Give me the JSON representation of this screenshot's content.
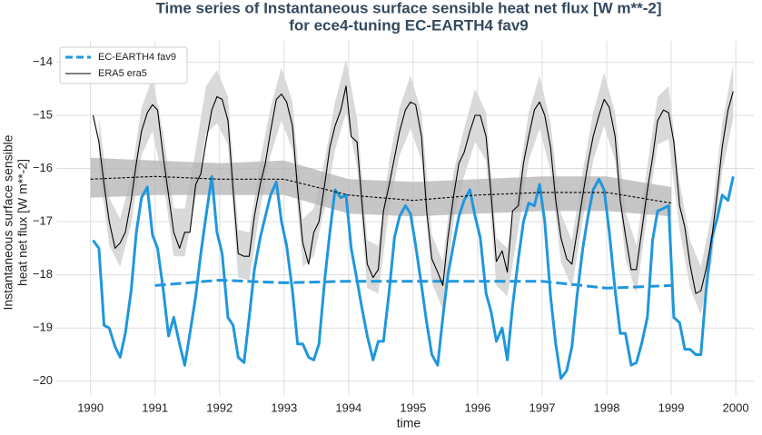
{
  "chart_data": {
    "type": "line",
    "title": "Time series of Instantaneous surface sensible heat net flux [W m**-2]",
    "subtitle": "for ece4-tuning EC-EARTH4 fav9",
    "xlabel": "time",
    "ylabel": [
      "Instantaneous surface sensible",
      "heat net flux [W m**-2]"
    ],
    "xlim": [
      1989.47,
      2000.28
    ],
    "ylim": [
      -20.26,
      -13.6
    ],
    "xticks": [
      1990,
      1991,
      1992,
      1993,
      1994,
      1995,
      1996,
      1997,
      1998,
      1999,
      2000
    ],
    "yticks": [
      {
        "value": -14,
        "label": "−14"
      },
      {
        "value": -15,
        "label": "−15"
      },
      {
        "value": -16,
        "label": "−16"
      },
      {
        "value": -17,
        "label": "−17"
      },
      {
        "value": -18,
        "label": "−18"
      },
      {
        "value": -19,
        "label": "−19"
      },
      {
        "value": -20,
        "label": "−20"
      }
    ],
    "grid": true,
    "legend": "upper left",
    "x": [
      1990.04,
      1990.13,
      1990.21,
      1990.29,
      1990.38,
      1990.46,
      1990.54,
      1990.63,
      1990.71,
      1990.79,
      1990.88,
      1990.96,
      1991.04,
      1991.13,
      1991.21,
      1991.29,
      1991.38,
      1991.46,
      1991.54,
      1991.63,
      1991.71,
      1991.79,
      1991.88,
      1991.96,
      1992.04,
      1992.13,
      1992.21,
      1992.29,
      1992.38,
      1992.46,
      1992.54,
      1992.63,
      1992.71,
      1992.79,
      1992.88,
      1992.96,
      1993.04,
      1993.13,
      1993.21,
      1993.29,
      1993.38,
      1993.46,
      1993.54,
      1993.63,
      1993.71,
      1993.79,
      1993.88,
      1993.96,
      1994.04,
      1994.13,
      1994.21,
      1994.29,
      1994.38,
      1994.46,
      1994.54,
      1994.63,
      1994.71,
      1994.79,
      1994.88,
      1994.96,
      1995.04,
      1995.13,
      1995.21,
      1995.29,
      1995.38,
      1995.46,
      1995.54,
      1995.63,
      1995.71,
      1995.79,
      1995.88,
      1995.96,
      1996.04,
      1996.13,
      1996.21,
      1996.29,
      1996.38,
      1996.46,
      1996.54,
      1996.63,
      1996.71,
      1996.79,
      1996.88,
      1996.96,
      1997.04,
      1997.13,
      1997.21,
      1997.29,
      1997.38,
      1997.46,
      1997.54,
      1997.63,
      1997.71,
      1997.79,
      1997.88,
      1997.96,
      1998.04,
      1998.13,
      1998.21,
      1998.29,
      1998.38,
      1998.46,
      1998.54,
      1998.63,
      1998.71,
      1998.79,
      1998.88,
      1998.96,
      1999.04,
      1999.13,
      1999.21,
      1999.29,
      1999.38,
      1999.46,
      1999.54,
      1999.63,
      1999.71,
      1999.79,
      1999.88,
      1999.96
    ],
    "series": [
      {
        "name": "EC-EARTH4 fav9",
        "color": "#1f97dc",
        "legend_dash": true,
        "values": [
          -17.35,
          -17.5,
          -18.95,
          -19.0,
          -19.35,
          -19.55,
          -19.1,
          -18.3,
          -17.2,
          -16.55,
          -16.35,
          -17.25,
          -17.5,
          -18.3,
          -19.15,
          -18.8,
          -19.3,
          -19.7,
          -19.1,
          -18.4,
          -17.6,
          -16.9,
          -16.15,
          -17.2,
          -17.6,
          -18.8,
          -18.95,
          -19.55,
          -19.65,
          -18.8,
          -17.9,
          -17.3,
          -16.9,
          -16.5,
          -16.25,
          -17.0,
          -17.45,
          -18.3,
          -19.3,
          -19.3,
          -19.55,
          -19.6,
          -19.3,
          -18.1,
          -17.2,
          -16.4,
          -16.55,
          -16.5,
          -17.5,
          -18.1,
          -18.65,
          -19.15,
          -19.6,
          -19.25,
          -19.25,
          -18.3,
          -17.3,
          -16.9,
          -16.7,
          -16.85,
          -17.45,
          -18.2,
          -18.9,
          -19.5,
          -19.7,
          -18.8,
          -18.0,
          -17.4,
          -16.9,
          -16.6,
          -16.4,
          -16.9,
          -17.3,
          -18.35,
          -18.7,
          -19.25,
          -19.0,
          -19.6,
          -18.6,
          -17.7,
          -17.0,
          -16.65,
          -16.7,
          -16.3,
          -17.0,
          -18.4,
          -19.3,
          -19.95,
          -19.8,
          -19.35,
          -18.4,
          -17.5,
          -16.9,
          -16.4,
          -16.2,
          -16.4,
          -17.2,
          -18.3,
          -19.1,
          -19.1,
          -19.7,
          -19.65,
          -19.3,
          -18.8,
          -17.35,
          -16.8,
          -16.75,
          -16.7,
          -18.8,
          -18.9,
          -19.4,
          -19.4,
          -19.5,
          -19.5,
          -18.3,
          -17.3,
          -16.95,
          -16.5,
          -16.6,
          -16.15
        ],
        "mean": {
          "x": [
            1991,
            1992,
            1993,
            1994,
            1995,
            1996,
            1997,
            1998,
            1999
          ],
          "values": [
            -18.2,
            -18.1,
            -18.15,
            -18.12,
            -18.12,
            -18.12,
            -18.12,
            -18.25,
            -18.2
          ]
        }
      },
      {
        "name": "ERA5 era5",
        "color": "#000000",
        "legend_dash": false,
        "values": [
          -15.0,
          -15.5,
          -16.3,
          -17.0,
          -17.5,
          -17.4,
          -17.2,
          -16.6,
          -15.9,
          -15.3,
          -14.95,
          -14.8,
          -14.9,
          -15.8,
          -16.5,
          -17.2,
          -17.5,
          -17.2,
          -17.2,
          -16.3,
          -16.1,
          -15.5,
          -14.9,
          -14.65,
          -14.7,
          -15.1,
          -16.4,
          -17.6,
          -17.65,
          -17.65,
          -16.9,
          -16.3,
          -15.9,
          -15.3,
          -14.7,
          -14.6,
          -14.75,
          -15.2,
          -16.4,
          -17.4,
          -17.8,
          -17.2,
          -17.0,
          -16.3,
          -15.6,
          -15.2,
          -14.9,
          -14.45,
          -15.4,
          -15.5,
          -16.7,
          -17.8,
          -18.05,
          -17.9,
          -16.8,
          -16.3,
          -15.8,
          -15.3,
          -14.9,
          -14.75,
          -14.8,
          -15.4,
          -16.8,
          -17.7,
          -17.95,
          -18.2,
          -17.3,
          -16.5,
          -15.9,
          -15.7,
          -15.3,
          -15.0,
          -15.0,
          -15.4,
          -16.5,
          -17.75,
          -17.55,
          -17.95,
          -16.8,
          -16.7,
          -15.9,
          -15.4,
          -14.9,
          -14.75,
          -15.0,
          -15.6,
          -16.6,
          -17.3,
          -17.7,
          -17.8,
          -17.2,
          -16.5,
          -15.9,
          -15.4,
          -15.0,
          -14.7,
          -14.85,
          -15.4,
          -16.6,
          -17.25,
          -17.9,
          -17.9,
          -17.2,
          -16.4,
          -15.8,
          -15.1,
          -14.9,
          -14.95,
          -15.5,
          -16.7,
          -17.1,
          -17.8,
          -18.35,
          -18.3,
          -17.9,
          -17.3,
          -16.5,
          -15.6,
          -14.9,
          -14.55
        ],
        "band": {
          "color": "#d9d9d9",
          "x": [
            1990.13,
            1990.29,
            1990.46,
            1990.63,
            1990.79,
            1990.96,
            1991.13,
            1991.29,
            1991.46,
            1991.63,
            1991.79,
            1991.96,
            1992.13,
            1992.29,
            1992.46,
            1992.63,
            1992.79,
            1992.96,
            1993.13,
            1993.29,
            1993.46,
            1993.63,
            1993.79,
            1993.96,
            1994.13,
            1994.29,
            1994.46,
            1994.63,
            1994.79,
            1994.96,
            1995.13,
            1995.29,
            1995.46,
            1995.63,
            1995.79,
            1995.96,
            1996.13,
            1996.29,
            1996.46,
            1996.63,
            1996.79,
            1996.96,
            1997.13,
            1997.29,
            1997.46,
            1997.63,
            1997.79,
            1997.96,
            1998.13,
            1998.29,
            1998.46,
            1998.63,
            1998.79,
            1998.96,
            1999.13,
            1999.29,
            1999.46,
            1999.63,
            1999.79,
            1999.96
          ],
          "upper": [
            -15.05,
            -16.55,
            -16.95,
            -16.15,
            -14.85,
            -14.3,
            -15.35,
            -16.75,
            -16.75,
            -15.65,
            -14.45,
            -14.15,
            -14.65,
            -17.15,
            -17.2,
            -15.85,
            -14.85,
            -14.1,
            -14.75,
            -16.95,
            -16.75,
            -15.85,
            -14.75,
            -13.95,
            -15.05,
            -17.35,
            -17.45,
            -15.85,
            -14.85,
            -14.25,
            -14.95,
            -17.25,
            -17.75,
            -16.05,
            -15.25,
            -14.5,
            -14.95,
            -17.3,
            -17.5,
            -16.25,
            -14.95,
            -14.25,
            -15.15,
            -16.85,
            -17.35,
            -16.05,
            -14.95,
            -14.2,
            -14.95,
            -16.8,
            -17.45,
            -15.95,
            -14.65,
            -14.45,
            -16.25,
            -17.35,
            -17.85,
            -16.85,
            -15.15,
            -14.05
          ],
          "lower": [
            -15.95,
            -17.45,
            -17.85,
            -17.05,
            -15.75,
            -15.3,
            -16.25,
            -17.65,
            -17.65,
            -16.55,
            -15.35,
            -15.15,
            -15.55,
            -18.05,
            -18.1,
            -16.75,
            -15.75,
            -15.1,
            -15.65,
            -17.85,
            -17.65,
            -16.75,
            -15.65,
            -14.95,
            -15.95,
            -18.25,
            -18.35,
            -16.75,
            -15.75,
            -15.25,
            -15.85,
            -18.15,
            -18.65,
            -16.95,
            -16.15,
            -15.5,
            -15.85,
            -18.2,
            -18.4,
            -17.15,
            -15.85,
            -15.25,
            -16.05,
            -17.75,
            -18.25,
            -16.95,
            -15.85,
            -15.2,
            -15.85,
            -17.7,
            -18.35,
            -16.85,
            -15.55,
            -15.45,
            -17.15,
            -18.25,
            -18.75,
            -17.75,
            -16.05,
            -15.05
          ]
        },
        "mean": {
          "x": [
            1990,
            1991,
            1992,
            1993,
            1994,
            1995,
            1996,
            1997,
            1998,
            1999
          ],
          "values": [
            -16.2,
            -16.15,
            -16.2,
            -16.2,
            -16.5,
            -16.6,
            -16.5,
            -16.45,
            -16.45,
            -16.65
          ],
          "upper": [
            -15.8,
            -15.85,
            -15.9,
            -15.85,
            -16.2,
            -16.25,
            -16.2,
            -16.15,
            -16.15,
            -16.35
          ],
          "lower": [
            -16.55,
            -16.5,
            -16.5,
            -16.5,
            -16.85,
            -16.9,
            -16.85,
            -16.8,
            -16.8,
            -16.9
          ],
          "band_color": "#b3b3b3"
        }
      }
    ]
  }
}
